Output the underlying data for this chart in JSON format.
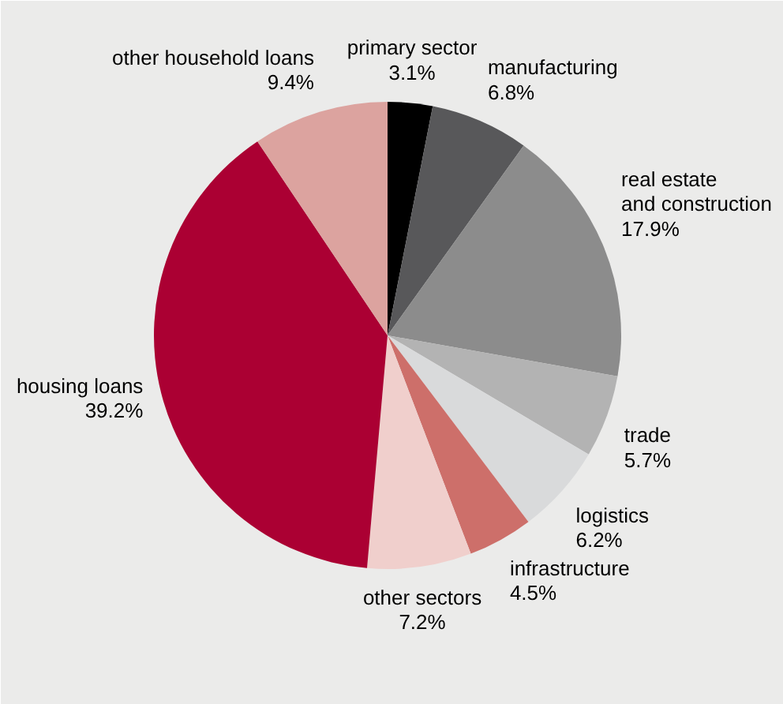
{
  "chart_data": {
    "type": "pie",
    "categories": [
      "primary sector",
      "manufacturing",
      "real estate\nand construction",
      "trade",
      "logistics",
      "infrastructure",
      "other sectors",
      "housing loans",
      "other household loans"
    ],
    "values": [
      3.1,
      6.8,
      17.9,
      5.7,
      6.2,
      4.5,
      7.2,
      39.2,
      9.4
    ],
    "value_labels": [
      "3.1%",
      "6.8%",
      "17.9%",
      "5.7%",
      "6.2%",
      "4.5%",
      "7.2%",
      "39.2%",
      "9.4%"
    ],
    "colors": [
      "#000000",
      "#58585a",
      "#8c8c8c",
      "#b3b3b3",
      "#d9dadb",
      "#cd6f6a",
      "#f0cfcc",
      "#ab0033",
      "#dca39f"
    ]
  }
}
